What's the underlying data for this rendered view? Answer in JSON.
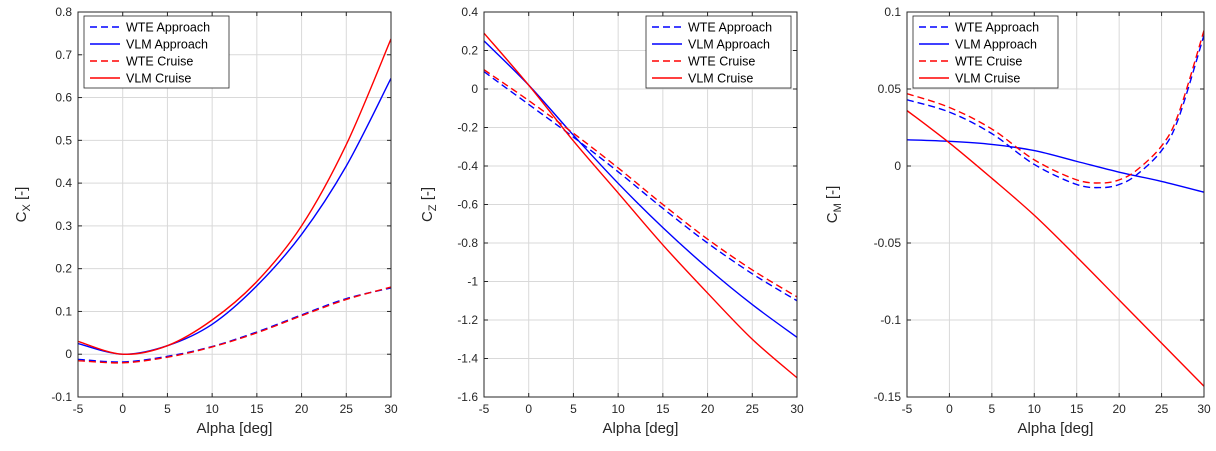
{
  "colors": {
    "blue": "#0000ff",
    "red": "#ff0000",
    "grid": "#d9d9d9",
    "axis": "#262626"
  },
  "chart_data": [
    {
      "type": "line",
      "xlabel": "Alpha [deg]",
      "ylabel": "C_X [-]",
      "ylabel_main": "C",
      "ylabel_sub": "X",
      "ylabel_unit": " [-]",
      "xlim": [
        -5,
        30
      ],
      "ylim": [
        -0.1,
        0.8
      ],
      "xticks": [
        -5,
        0,
        5,
        10,
        15,
        20,
        25,
        30
      ],
      "xtick_labels": [
        "-5",
        "0",
        "5",
        "10",
        "15",
        "20",
        "25",
        "30"
      ],
      "yticks": [
        -0.1,
        0,
        0.1,
        0.2,
        0.3,
        0.4,
        0.5,
        0.6,
        0.7,
        0.8
      ],
      "ytick_labels": [
        "-0.1",
        "0",
        "0.1",
        "0.2",
        "0.3",
        "0.4",
        "0.5",
        "0.6",
        "0.7",
        "0.8"
      ],
      "grid": true,
      "legend": "top-left",
      "series": [
        {
          "name": "WTE Approach",
          "color": "blue",
          "style": "dashed",
          "x": [
            -5,
            0,
            5,
            10,
            15,
            20,
            25,
            30
          ],
          "y": [
            -0.012,
            -0.018,
            -0.005,
            0.018,
            0.052,
            0.092,
            0.13,
            0.155
          ]
        },
        {
          "name": "VLM Approach",
          "color": "blue",
          "style": "solid",
          "x": [
            -5,
            0,
            5,
            10,
            15,
            20,
            25,
            30
          ],
          "y": [
            0.025,
            0.0,
            0.02,
            0.07,
            0.16,
            0.28,
            0.44,
            0.645
          ]
        },
        {
          "name": "WTE Cruise",
          "color": "red",
          "style": "dashed",
          "x": [
            -5,
            0,
            5,
            10,
            15,
            20,
            25,
            30
          ],
          "y": [
            -0.015,
            -0.02,
            -0.007,
            0.017,
            0.05,
            0.09,
            0.128,
            0.157
          ]
        },
        {
          "name": "VLM Cruise",
          "color": "red",
          "style": "solid",
          "x": [
            -5,
            0,
            5,
            10,
            15,
            20,
            25,
            30
          ],
          "y": [
            0.03,
            0.0,
            0.02,
            0.08,
            0.17,
            0.3,
            0.49,
            0.737
          ]
        }
      ]
    },
    {
      "type": "line",
      "xlabel": "Alpha [deg]",
      "ylabel": "C_Z [-]",
      "ylabel_main": "C",
      "ylabel_sub": "Z",
      "ylabel_unit": " [-]",
      "xlim": [
        -5,
        30
      ],
      "ylim": [
        -1.6,
        0.4
      ],
      "xticks": [
        -5,
        0,
        5,
        10,
        15,
        20,
        25,
        30
      ],
      "xtick_labels": [
        "-5",
        "0",
        "5",
        "10",
        "15",
        "20",
        "25",
        "30"
      ],
      "yticks": [
        -1.6,
        -1.4,
        -1.2,
        -1.0,
        -0.8,
        -0.6,
        -0.4,
        -0.2,
        0,
        0.2,
        0.4
      ],
      "ytick_labels": [
        "-1.6",
        "-1.4",
        "-1.2",
        "-1",
        "-0.8",
        "-0.6",
        "-0.4",
        "-0.2",
        "0",
        "0.2",
        "0.4"
      ],
      "grid": true,
      "legend": "top-right",
      "series": [
        {
          "name": "WTE Approach",
          "color": "blue",
          "style": "dashed",
          "x": [
            -5,
            0,
            5,
            10,
            15,
            20,
            25,
            30
          ],
          "y": [
            0.09,
            -0.08,
            -0.25,
            -0.43,
            -0.62,
            -0.8,
            -0.96,
            -1.1
          ]
        },
        {
          "name": "VLM Approach",
          "color": "blue",
          "style": "solid",
          "x": [
            -5,
            0,
            5,
            10,
            15,
            20,
            25,
            30
          ],
          "y": [
            0.25,
            0.02,
            -0.24,
            -0.49,
            -0.72,
            -0.93,
            -1.12,
            -1.29
          ]
        },
        {
          "name": "WTE Cruise",
          "color": "red",
          "style": "dashed",
          "x": [
            -5,
            0,
            5,
            10,
            15,
            20,
            25,
            30
          ],
          "y": [
            0.1,
            -0.06,
            -0.23,
            -0.41,
            -0.6,
            -0.78,
            -0.94,
            -1.08
          ]
        },
        {
          "name": "VLM Cruise",
          "color": "red",
          "style": "solid",
          "x": [
            -5,
            0,
            5,
            10,
            15,
            20,
            25,
            30
          ],
          "y": [
            0.29,
            0.02,
            -0.27,
            -0.54,
            -0.81,
            -1.06,
            -1.3,
            -1.5
          ]
        }
      ]
    },
    {
      "type": "line",
      "xlabel": "Alpha [deg]",
      "ylabel": "C_M [-]",
      "ylabel_main": "C",
      "ylabel_sub": "M",
      "ylabel_unit": " [-]",
      "xlim": [
        -5,
        30
      ],
      "ylim": [
        -0.15,
        0.1
      ],
      "xticks": [
        -5,
        0,
        5,
        10,
        15,
        20,
        25,
        30
      ],
      "xtick_labels": [
        "-5",
        "0",
        "5",
        "10",
        "15",
        "20",
        "25",
        "30"
      ],
      "yticks": [
        -0.15,
        -0.1,
        -0.05,
        0,
        0.05,
        0.1
      ],
      "ytick_labels": [
        "-0.15",
        "-0.1",
        "-0.05",
        "0",
        "0.05",
        "0.1"
      ],
      "grid": true,
      "legend": "top-left",
      "series": [
        {
          "name": "WTE Approach",
          "color": "blue",
          "style": "dashed",
          "x": [
            -5,
            0,
            5,
            10,
            15,
            18,
            20,
            22,
            25,
            27,
            30
          ],
          "y": [
            0.043,
            0.035,
            0.021,
            0.001,
            -0.012,
            -0.014,
            -0.012,
            -0.006,
            0.01,
            0.031,
            0.085
          ]
        },
        {
          "name": "VLM Approach",
          "color": "blue",
          "style": "solid",
          "x": [
            -5,
            0,
            5,
            10,
            15,
            20,
            25,
            30
          ],
          "y": [
            0.017,
            0.016,
            0.014,
            0.01,
            0.003,
            -0.004,
            -0.01,
            -0.017
          ]
        },
        {
          "name": "WTE Cruise",
          "color": "red",
          "style": "dashed",
          "x": [
            -5,
            0,
            5,
            10,
            15,
            18,
            20,
            22,
            25,
            27,
            30
          ],
          "y": [
            0.047,
            0.038,
            0.024,
            0.004,
            -0.009,
            -0.011,
            -0.009,
            -0.003,
            0.013,
            0.034,
            0.088
          ]
        },
        {
          "name": "VLM Cruise",
          "color": "red",
          "style": "solid",
          "x": [
            -5,
            0,
            5,
            10,
            15,
            20,
            25,
            30
          ],
          "y": [
            0.036,
            0.015,
            -0.008,
            -0.032,
            -0.059,
            -0.087,
            -0.115,
            -0.143
          ]
        }
      ]
    }
  ]
}
